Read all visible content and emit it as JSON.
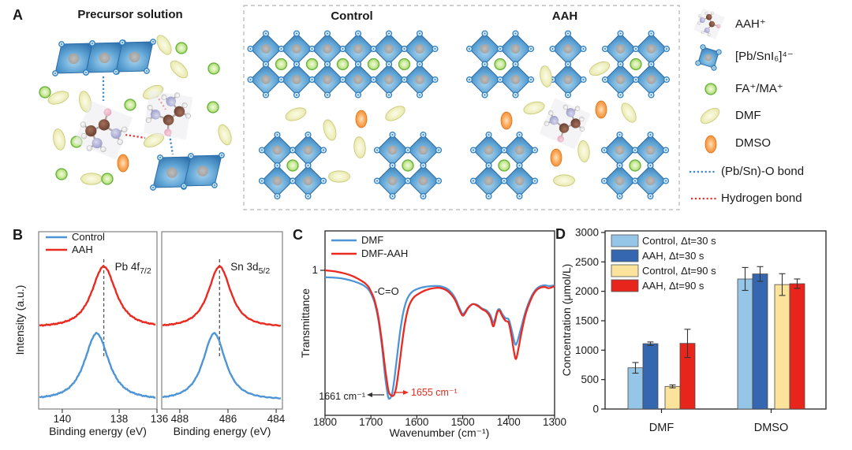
{
  "panelA": {
    "label": "A",
    "precursor_title": "Precursor solution",
    "control_title": "Control",
    "aah_title": "AAH",
    "legend": [
      {
        "icon": "aah-molecule-icon",
        "label": "AAH⁺"
      },
      {
        "icon": "octahedron-icon",
        "label": "[Pb/SnI₆]⁴⁻"
      },
      {
        "icon": "cation-icon",
        "label": "FA⁺/MA⁺"
      },
      {
        "icon": "dmf-icon",
        "label": "DMF"
      },
      {
        "icon": "dmso-icon",
        "label": "DMSO"
      },
      {
        "icon": "pbsn-o-bond-icon",
        "label": "(Pb/Sn)-O bond"
      },
      {
        "icon": "hydrogen-bond-icon",
        "label": "Hydrogen bond"
      }
    ]
  },
  "panelB": {
    "label": "B",
    "ylabel": "Intensity (a.u.)",
    "legend": [
      {
        "name": "Control",
        "color": "#4d95d6"
      },
      {
        "name": "AAH",
        "color": "#ea2a20"
      }
    ]
  },
  "panelC": {
    "label": "C"
  },
  "panelD": {
    "label": "D"
  },
  "chart_data": [
    {
      "id": "xps-pb",
      "type": "line",
      "title_prefix": "Pb 4f",
      "title_sub": "7/2",
      "xlabel": "Binding energy (eV)",
      "ylabel": "Intensity (a.u.)",
      "x_range": [
        140.83,
        136.67
      ],
      "x_ticks": [
        140,
        138,
        136
      ],
      "dashed_line_x": 138.54,
      "series": [
        {
          "name": "Control",
          "color": "#4d95d6",
          "peak_center": 138.79,
          "fwhm": 1.0,
          "baseline_frac": 0.947,
          "peak_frac": 0.573
        },
        {
          "name": "AAH",
          "color": "#ea2a20",
          "peak_center": 138.54,
          "fwhm": 1.0,
          "baseline_frac": 0.538,
          "peak_frac": 0.196
        }
      ]
    },
    {
      "id": "xps-sn",
      "type": "line",
      "title_prefix": "Sn 3d",
      "title_sub": "5/2",
      "xlabel": "Binding energy (eV)",
      "x_range": [
        488.75,
        483.74
      ],
      "x_ticks": [
        488,
        486,
        484
      ],
      "dashed_line_x": 486.35,
      "series": [
        {
          "name": "Control",
          "color": "#4d95d6",
          "peak_center": 486.57,
          "fwhm": 1.1,
          "baseline_frac": 0.947,
          "peak_frac": 0.573
        },
        {
          "name": "AAH",
          "color": "#ea2a20",
          "peak_center": 486.35,
          "fwhm": 1.1,
          "baseline_frac": 0.538,
          "peak_frac": 0.196
        }
      ]
    },
    {
      "id": "ftir",
      "type": "line",
      "xlabel": "Wavenumber (cm⁻¹)",
      "ylabel": "Transmittance",
      "x_range": [
        1800,
        1300
      ],
      "x_ticks": [
        1800,
        1700,
        1600,
        1500,
        1400,
        1300
      ],
      "y_ticks": [
        1
      ],
      "annotations": [
        {
          "text": "-C=O",
          "color": "#1a1a1a"
        },
        {
          "text": "1661 cm⁻¹",
          "color": "#1a1a1a",
          "points_to": 1661
        },
        {
          "text": "1655 cm⁻¹",
          "color": "#ea2a20",
          "points_to": 1655
        }
      ],
      "legend": [
        {
          "name": "DMF",
          "color": "#4d95d6"
        },
        {
          "name": "DMF-AAH",
          "color": "#ea2a20"
        }
      ],
      "series": [
        {
          "name": "DMF",
          "color": "#4d95d6",
          "points": [
            [
              1800,
              0.95
            ],
            [
              1775,
              0.945
            ],
            [
              1755,
              0.935
            ],
            [
              1738,
              0.92
            ],
            [
              1724,
              0.903
            ],
            [
              1714,
              0.885
            ],
            [
              1706,
              0.862
            ],
            [
              1700,
              0.83
            ],
            [
              1692,
              0.762
            ],
            [
              1684,
              0.64
            ],
            [
              1676,
              0.44
            ],
            [
              1669,
              0.22
            ],
            [
              1663,
              0.08
            ],
            [
              1659,
              0.06
            ],
            [
              1654,
              0.095
            ],
            [
              1649,
              0.2
            ],
            [
              1643,
              0.37
            ],
            [
              1636,
              0.56
            ],
            [
              1629,
              0.7
            ],
            [
              1621,
              0.79
            ],
            [
              1611,
              0.84
            ],
            [
              1598,
              0.865
            ],
            [
              1580,
              0.88
            ],
            [
              1562,
              0.885
            ],
            [
              1548,
              0.882
            ],
            [
              1532,
              0.86
            ],
            [
              1518,
              0.805
            ],
            [
              1508,
              0.73
            ],
            [
              1501,
              0.682
            ],
            [
              1496,
              0.69
            ],
            [
              1488,
              0.728
            ],
            [
              1478,
              0.752
            ],
            [
              1468,
              0.745
            ],
            [
              1458,
              0.72
            ],
            [
              1448,
              0.705
            ],
            [
              1440,
              0.672
            ],
            [
              1434,
              0.618
            ],
            [
              1430,
              0.64
            ],
            [
              1425,
              0.7
            ],
            [
              1420,
              0.715
            ],
            [
              1414,
              0.68
            ],
            [
              1407,
              0.65
            ],
            [
              1400,
              0.64
            ],
            [
              1394,
              0.57
            ],
            [
              1388,
              0.48
            ],
            [
              1384,
              0.455
            ],
            [
              1379,
              0.5
            ],
            [
              1372,
              0.59
            ],
            [
              1363,
              0.7
            ],
            [
              1353,
              0.79
            ],
            [
              1343,
              0.85
            ],
            [
              1333,
              0.88
            ],
            [
              1322,
              0.89
            ],
            [
              1312,
              0.885
            ],
            [
              1300,
              0.89
            ]
          ]
        },
        {
          "name": "DMF-AAH",
          "color": "#ea2a20",
          "points": [
            [
              1800,
              1.0
            ],
            [
              1775,
              0.99
            ],
            [
              1755,
              0.975
            ],
            [
              1738,
              0.955
            ],
            [
              1724,
              0.93
            ],
            [
              1714,
              0.908
            ],
            [
              1706,
              0.882
            ],
            [
              1700,
              0.845
            ],
            [
              1693,
              0.79
            ],
            [
              1685,
              0.68
            ],
            [
              1677,
              0.5
            ],
            [
              1669,
              0.28
            ],
            [
              1662,
              0.12
            ],
            [
              1656,
              0.082
            ],
            [
              1650,
              0.085
            ],
            [
              1645,
              0.14
            ],
            [
              1639,
              0.28
            ],
            [
              1632,
              0.47
            ],
            [
              1625,
              0.63
            ],
            [
              1617,
              0.74
            ],
            [
              1607,
              0.8
            ],
            [
              1595,
              0.83
            ],
            [
              1580,
              0.855
            ],
            [
              1562,
              0.87
            ],
            [
              1548,
              0.87
            ],
            [
              1532,
              0.845
            ],
            [
              1518,
              0.79
            ],
            [
              1508,
              0.715
            ],
            [
              1501,
              0.67
            ],
            [
              1496,
              0.68
            ],
            [
              1488,
              0.725
            ],
            [
              1478,
              0.752
            ],
            [
              1468,
              0.74
            ],
            [
              1458,
              0.715
            ],
            [
              1448,
              0.695
            ],
            [
              1440,
              0.655
            ],
            [
              1434,
              0.59
            ],
            [
              1430,
              0.62
            ],
            [
              1425,
              0.69
            ],
            [
              1420,
              0.705
            ],
            [
              1414,
              0.665
            ],
            [
              1407,
              0.63
            ],
            [
              1400,
              0.615
            ],
            [
              1394,
              0.52
            ],
            [
              1388,
              0.395
            ],
            [
              1384,
              0.35
            ],
            [
              1379,
              0.42
            ],
            [
              1372,
              0.545
            ],
            [
              1363,
              0.68
            ],
            [
              1353,
              0.775
            ],
            [
              1343,
              0.84
            ],
            [
              1333,
              0.87
            ],
            [
              1322,
              0.878
            ],
            [
              1315,
              0.87
            ],
            [
              1308,
              0.872
            ],
            [
              1300,
              0.885
            ]
          ]
        }
      ]
    },
    {
      "id": "solubility",
      "type": "bar",
      "ylabel": "Concentration (μmol/L)",
      "ylim": [
        0,
        3000
      ],
      "y_ticks": [
        0,
        500,
        1000,
        1500,
        2000,
        2500,
        3000
      ],
      "categories": [
        "DMF",
        "DMSO"
      ],
      "series": [
        {
          "name": "Control, Δt=30 s",
          "color": "#95c6e8",
          "values": [
            700,
            2210
          ],
          "errors": [
            90,
            195
          ]
        },
        {
          "name": "AAH, Δt=30 s",
          "color": "#3566b0",
          "values": [
            1110,
            2295
          ],
          "errors": [
            30,
            125
          ]
        },
        {
          "name": "Control, Δt=90 s",
          "color": "#fbe39b",
          "values": [
            385,
            2115
          ],
          "errors": [
            25,
            185
          ]
        },
        {
          "name": "AAH, Δt=90 s",
          "color": "#e8251c",
          "values": [
            1115,
            2130
          ],
          "errors": [
            240,
            80
          ]
        }
      ]
    }
  ]
}
